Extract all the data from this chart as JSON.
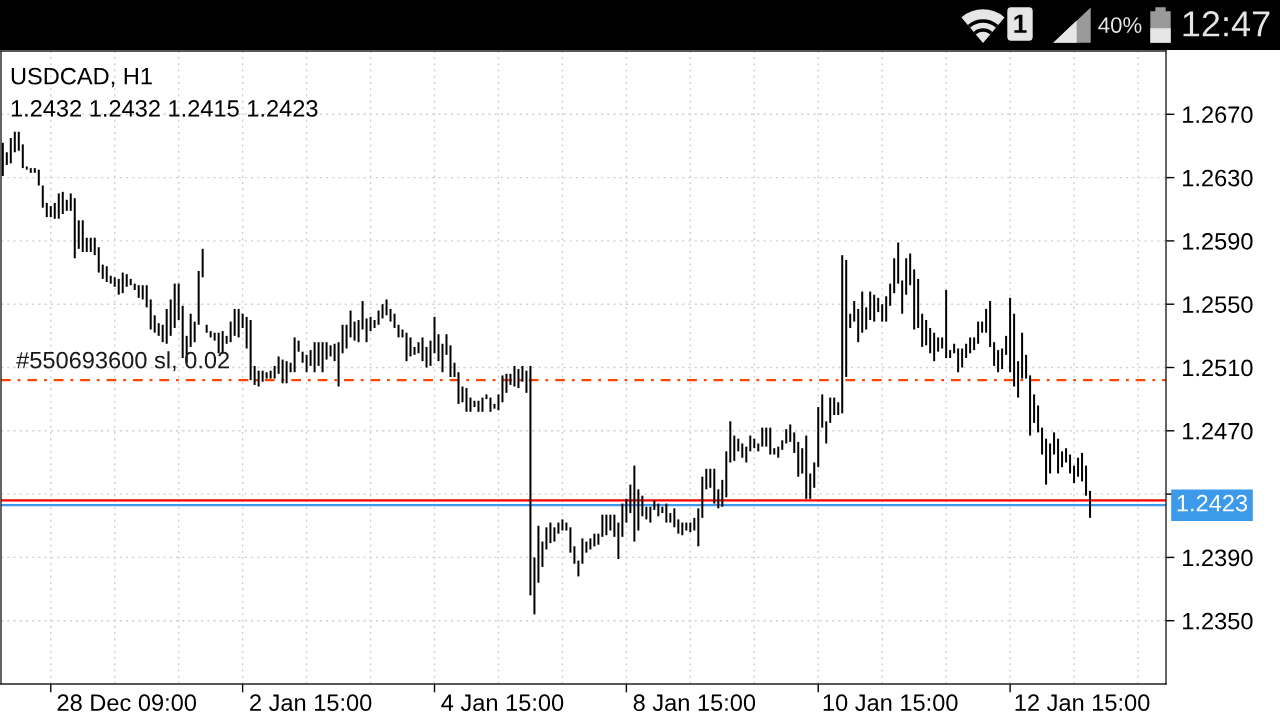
{
  "chart_data": {
    "type": "bar",
    "title": "USDCAD, H1",
    "subtitle": "1.2432 1.2432 1.2415 1.2423",
    "categories": [
      null,
      null,
      null,
      null,
      null,
      null,
      null,
      null,
      null,
      null,
      null,
      null,
      null,
      null,
      null,
      null,
      null,
      null,
      null,
      null,
      null,
      null,
      null,
      null,
      null,
      null,
      null,
      null,
      null,
      null,
      null,
      "28 Dec 09:00",
      null,
      null,
      null,
      null,
      null,
      null,
      null,
      null,
      null,
      null,
      null,
      null,
      null,
      null,
      null,
      null,
      null,
      null,
      null,
      null,
      null,
      null,
      null,
      null,
      null,
      null,
      null,
      null,
      null,
      null,
      null,
      null,
      null,
      null,
      null,
      null,
      null,
      null,
      null,
      null,
      null,
      null,
      null,
      null,
      null,
      "2 Jan 15:00",
      null,
      null,
      null,
      null,
      null,
      null,
      null,
      null,
      null,
      null,
      null,
      null,
      null,
      null,
      null,
      null,
      null,
      null,
      null,
      null,
      null,
      null,
      null,
      null,
      null,
      null,
      null,
      null,
      null,
      null,
      null,
      null,
      null,
      null,
      null,
      null,
      null,
      null,
      null,
      null,
      null,
      null,
      null,
      null,
      null,
      null,
      null,
      "4 Jan 15:00",
      null,
      null,
      null,
      null,
      null,
      null,
      null,
      null,
      null,
      null,
      null,
      null,
      null,
      null,
      null,
      null,
      null,
      null,
      null,
      null,
      null,
      null,
      null,
      null,
      null,
      null,
      null,
      null,
      null,
      null,
      null,
      null,
      null,
      null,
      null,
      null,
      null,
      null,
      null,
      null,
      null,
      null,
      null,
      null,
      null,
      null,
      null,
      "8 Jan 15:00",
      null,
      null,
      null,
      null,
      null,
      null,
      null,
      null,
      null,
      null,
      null,
      null,
      null,
      null,
      null,
      null,
      null,
      null,
      null,
      null,
      null,
      null,
      null,
      null,
      null,
      null,
      null,
      null,
      null,
      null,
      null,
      null,
      null,
      null,
      null,
      null,
      null,
      null,
      null,
      null,
      null,
      null,
      null,
      null,
      null,
      null,
      null,
      null,
      "10 Jan 15:00",
      null,
      null,
      null,
      null,
      null,
      null,
      null,
      null,
      null,
      null,
      null,
      null,
      null,
      null,
      null,
      null,
      null,
      null,
      null,
      null,
      null,
      null,
      null,
      null,
      null,
      null,
      null,
      null,
      null,
      null,
      null,
      null,
      null,
      null,
      null,
      null,
      null,
      null,
      null,
      null,
      null,
      null,
      null,
      null,
      null,
      null,
      null,
      "12 Jan 15:00",
      null,
      null
    ],
    "base": [
      1.2631,
      1.2638,
      1.2639,
      1.2646,
      1.2647,
      1.2636,
      1.2635,
      1.2633,
      1.2633,
      1.2625,
      1.2611,
      1.2605,
      1.2605,
      1.2604,
      1.2604,
      1.2607,
      1.2609,
      1.2609,
      1.2579,
      1.2585,
      1.2583,
      1.2583,
      1.2583,
      1.2581,
      1.257,
      1.2566,
      1.2564,
      1.2563,
      1.2561,
      1.2556,
      1.2557,
      1.2561,
      1.2562,
      1.2559,
      1.2554,
      1.2553,
      1.2548,
      1.2534,
      1.2532,
      1.253,
      1.2526,
      1.2525,
      1.253,
      1.2535,
      1.254,
      1.2516,
      1.2513,
      1.2523,
      1.2526,
      1.2537,
      1.2567,
      1.2532,
      1.2529,
      1.2527,
      1.2519,
      1.2519,
      1.2525,
      1.2526,
      1.253,
      1.2529,
      1.2535,
      1.2522,
      1.2502,
      1.2499,
      1.2498,
      1.2501,
      1.2503,
      1.2503,
      1.2503,
      1.2506,
      1.25,
      1.25,
      1.2507,
      1.2507,
      1.252,
      1.2513,
      1.2507,
      1.2511,
      1.2507,
      1.2511,
      1.2507,
      1.2515,
      1.2517,
      1.2514,
      1.2498,
      1.2519,
      1.2522,
      1.2529,
      1.2527,
      1.2526,
      1.2534,
      1.2526,
      1.2533,
      1.2535,
      1.2537,
      1.2541,
      1.2543,
      1.2539,
      1.2535,
      1.2529,
      1.2529,
      1.2514,
      1.2517,
      1.2518,
      1.2519,
      1.2514,
      1.251,
      1.2511,
      1.2519,
      1.2514,
      1.2507,
      1.2518,
      1.2504,
      1.2504,
      1.2487,
      1.2488,
      1.2482,
      1.2482,
      1.2485,
      1.2482,
      1.2482,
      1.249,
      1.2482,
      1.2484,
      1.2483,
      1.2488,
      1.2494,
      1.2499,
      1.2498,
      1.2497,
      1.2501,
      1.2494,
      1.2366,
      1.2354,
      1.2374,
      1.2384,
      1.2395,
      1.2399,
      1.24,
      1.2405,
      1.2407,
      1.2407,
      1.2393,
      1.2386,
      1.2378,
      1.2386,
      1.2393,
      1.2395,
      1.2397,
      1.2398,
      1.2403,
      1.2404,
      1.2407,
      1.2403,
      1.2389,
      1.2403,
      1.2412,
      1.2418,
      1.24,
      1.2407,
      1.2416,
      1.2414,
      1.2412,
      1.242,
      1.2416,
      1.2418,
      1.2412,
      1.2412,
      1.2409,
      1.2405,
      1.2404,
      1.2407,
      1.2406,
      1.2407,
      1.2397,
      1.2415,
      1.2433,
      1.2434,
      1.2424,
      1.2421,
      1.2422,
      1.2428,
      1.245,
      1.2451,
      1.2457,
      1.2453,
      1.245,
      1.2457,
      1.2459,
      1.2457,
      1.246,
      1.246,
      1.2455,
      1.2455,
      1.2453,
      1.2458,
      1.2462,
      1.2463,
      1.2456,
      1.2441,
      1.2443,
      1.2427,
      1.2427,
      1.2434,
      1.2447,
      1.2472,
      1.2462,
      1.2475,
      1.248,
      1.248,
      1.2481,
      1.2504,
      1.2535,
      1.2539,
      1.2526,
      1.2532,
      1.2534,
      1.254,
      1.2539,
      1.2545,
      1.2539,
      1.2539,
      1.2549,
      1.2557,
      1.2563,
      1.2544,
      1.2556,
      1.2562,
      1.2534,
      1.2535,
      1.2523,
      1.2524,
      1.2519,
      1.2514,
      1.252,
      1.2522,
      1.2516,
      1.2516,
      1.2519,
      1.2507,
      1.251,
      1.2516,
      1.2519,
      1.2521,
      1.2525,
      1.2532,
      1.2532,
      1.2523,
      1.2511,
      1.2507,
      1.2509,
      1.2518,
      1.2507,
      1.2498,
      1.2491,
      1.2503,
      1.2503,
      1.2467,
      1.2475,
      1.2469,
      1.2455,
      1.2436,
      1.2443,
      1.2455,
      1.2443,
      1.2447,
      1.245,
      1.2443,
      1.2437,
      1.2441,
      1.2438,
      1.2429,
      1.2415
    ],
    "values": [
      0.0021,
      0.0008,
      0.0016,
      0.0013,
      0.0012,
      0.0015,
      0.0002,
      0.0003,
      0.0003,
      0.001,
      0.0014,
      0.0009,
      0.0007,
      0.001,
      0.0016,
      0.0014,
      0.0007,
      0.0011,
      0.0038,
      0.0018,
      0.002,
      0.0009,
      0.0009,
      0.0011,
      0.0016,
      0.0009,
      0.001,
      0.0005,
      0.0006,
      0.001,
      0.0013,
      0.0008,
      0.0004,
      0.0004,
      0.0008,
      0.0009,
      0.0014,
      0.0019,
      0.0011,
      0.0008,
      0.0011,
      0.0022,
      0.0023,
      0.0028,
      0.0023,
      0.0033,
      0.0017,
      0.0021,
      0.0013,
      0.0034,
      0.0018,
      0.0005,
      0.0004,
      0.0005,
      0.0013,
      0.0014,
      0.0005,
      0.0013,
      0.0017,
      0.0018,
      0.0009,
      0.002,
      0.0038,
      0.0012,
      0.001,
      0.0007,
      0.0004,
      0.0005,
      0.0008,
      0.0011,
      0.0015,
      0.0014,
      0.0006,
      0.0022,
      0.0007,
      0.0007,
      0.0011,
      0.001,
      0.0019,
      0.0015,
      0.0019,
      0.0011,
      0.0007,
      0.0011,
      0.0028,
      0.0018,
      0.0015,
      0.0017,
      0.0012,
      0.0014,
      0.0018,
      0.0015,
      0.0009,
      0.0005,
      0.0009,
      0.0009,
      0.001,
      0.0008,
      0.0009,
      0.0008,
      0.0005,
      0.0018,
      0.0012,
      0.0005,
      0.0007,
      0.0015,
      0.0013,
      0.0016,
      0.0023,
      0.0017,
      0.0018,
      0.0013,
      0.002,
      0.0009,
      0.002,
      0.001,
      0.0015,
      0.0009,
      0.0004,
      0.0007,
      0.0009,
      0.0003,
      0.0009,
      0.0003,
      0.001,
      0.0017,
      0.0012,
      0.0007,
      0.0013,
      0.0012,
      0.001,
      0.0014,
      0.0145,
      0.0036,
      0.0036,
      0.0016,
      0.0014,
      0.0013,
      0.0009,
      0.0007,
      0.0007,
      0.0005,
      0.0016,
      0.0011,
      0.001,
      0.0016,
      0.0007,
      0.0007,
      0.0008,
      0.0007,
      0.0014,
      0.0013,
      0.001,
      0.0014,
      0.0023,
      0.0021,
      0.0015,
      0.0018,
      0.0048,
      0.0026,
      0.0013,
      0.0008,
      0.001,
      0.0006,
      0.0008,
      0.0004,
      0.0012,
      0.0006,
      0.0012,
      0.0009,
      0.0008,
      0.0005,
      0.0006,
      0.0008,
      0.0024,
      0.0026,
      0.0013,
      0.0012,
      0.0022,
      0.0012,
      0.0017,
      0.0029,
      0.0026,
      0.0016,
      0.0008,
      0.0009,
      0.001,
      0.001,
      0.0006,
      0.0005,
      0.0012,
      0.0012,
      0.0017,
      0.0004,
      0.0007,
      0.0006,
      0.0009,
      0.0011,
      0.0013,
      0.0022,
      0.0016,
      0.004,
      0.0016,
      0.0016,
      0.0038,
      0.0021,
      0.0014,
      0.0016,
      0.0011,
      0.0008,
      0.01,
      0.0074,
      0.0009,
      0.0013,
      0.0021,
      0.0026,
      0.0014,
      0.0018,
      0.0017,
      0.0009,
      0.0011,
      0.0016,
      0.0014,
      0.0022,
      0.0026,
      0.0021,
      0.0023,
      0.002,
      0.0038,
      0.0031,
      0.0021,
      0.0016,
      0.0016,
      0.0018,
      0.0009,
      0.0007,
      0.0043,
      0.0005,
      0.0006,
      0.0015,
      0.0012,
      0.0009,
      0.001,
      0.0008,
      0.0014,
      0.0007,
      0.0015,
      0.0029,
      0.0015,
      0.0014,
      0.0013,
      0.0012,
      0.0047,
      0.0046,
      0.0023,
      0.0029,
      0.0015,
      0.0038,
      0.0018,
      0.0017,
      0.0017,
      0.0029,
      0.0019,
      0.0014,
      0.0022,
      0.001,
      0.0009,
      0.0012,
      0.0011,
      0.0012,
      0.0018,
      0.0019,
      0.0017
    ],
    "color": "#000000",
    "ylim": [
      1.231,
      1.271
    ],
    "yticks": [
      {
        "value": 1.235,
        "label": "1.2350"
      },
      {
        "value": 1.239,
        "label": "1.2390"
      },
      {
        "value": 1.243,
        "label": null
      },
      {
        "value": 1.247,
        "label": "1.2470"
      },
      {
        "value": 1.251,
        "label": "1.2510"
      },
      {
        "value": 1.255,
        "label": "1.2550"
      },
      {
        "value": 1.259,
        "label": "1.2590"
      },
      {
        "value": 1.263,
        "label": "1.2630"
      },
      {
        "value": 1.267,
        "label": "1.2670"
      }
    ],
    "grid": true,
    "ref_lines": [
      {
        "axis": "y",
        "value": 1.2502,
        "label": "#550693600 sl, 0.02",
        "color": "#ff4500",
        "line_style": "dashdot"
      },
      {
        "axis": "y",
        "value": 1.2426,
        "color": "#ff0000",
        "line_style": "solid"
      },
      {
        "axis": "y",
        "value": 1.2423,
        "label": "1.2423",
        "color": "#3d9aea",
        "line_style": "solid"
      }
    ],
    "annotations": [
      "1",
      "40%",
      "12:47"
    ]
  }
}
